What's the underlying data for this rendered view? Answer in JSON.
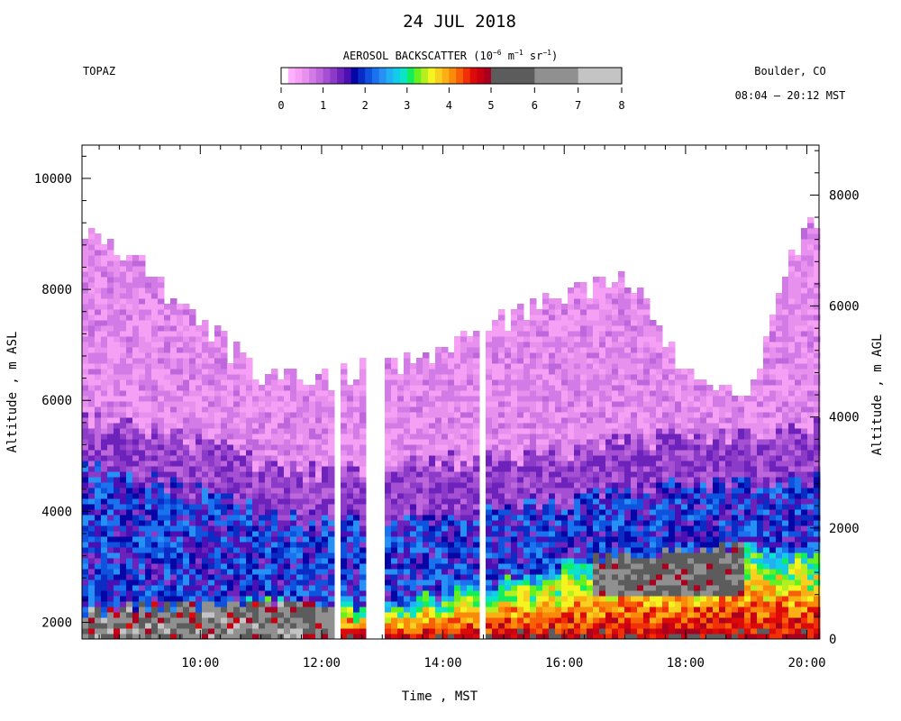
{
  "header": {
    "date_title": "24 JUL 2018",
    "instrument": "TOPAZ",
    "location": "Boulder, CO",
    "time_range": "08:04 – 20:12 MST"
  },
  "colorbar": {
    "label_main": "AEROSOL BACKSCATTER (10",
    "label_exp1": "−6",
    "label_mid1": " m",
    "label_exp2": "−1",
    "label_mid2": " sr",
    "label_exp3": "−1",
    "label_end": ")",
    "ticks": [
      "0",
      "1",
      "2",
      "3",
      "4",
      "5",
      "6",
      "7",
      "8"
    ],
    "colors": [
      "#ffffff",
      "#ffb0ff",
      "#f5a0f5",
      "#e890ee",
      "#d27be6",
      "#be66dc",
      "#a54fd2",
      "#8b3bc8",
      "#6e22bc",
      "#4a10b4",
      "#0606a6",
      "#0a2cc4",
      "#0e52de",
      "#1a72ee",
      "#2690f5",
      "#22b0f5",
      "#12ccea",
      "#0ce4c8",
      "#10ee60",
      "#66f020",
      "#b4f020",
      "#f4f420",
      "#f8d020",
      "#fab014",
      "#fa8a0a",
      "#f86008",
      "#f23008",
      "#dc0a08",
      "#c80012",
      "#a8001e",
      "#5c5c5c",
      "#909090",
      "#c4c4c4"
    ]
  },
  "chart_data": {
    "type": "heatmap",
    "title": "24 JUL 2018",
    "xlabel": "Time , MST",
    "ylabel_left": "Altitude , m ASL",
    "ylabel_right": "Altitude , m AGL",
    "xlim_hours": [
      8.05,
      20.2
    ],
    "ylim_asl": [
      1700,
      10600
    ],
    "ylim_agl": [
      0,
      8900
    ],
    "x_ticks": [
      "10:00",
      "12:00",
      "14:00",
      "16:00",
      "18:00",
      "20:00"
    ],
    "y_left_ticks": [
      "2000",
      "4000",
      "6000",
      "8000",
      "10000"
    ],
    "y_right_ticks": [
      "0",
      "2000",
      "4000",
      "6000",
      "8000"
    ],
    "colorscale_range": [
      0,
      8
    ],
    "grid": false,
    "profiles": [
      {
        "time": "08:10",
        "pbl_top": 2200,
        "residual_top": 4750,
        "cloud_top": 9000
      },
      {
        "time": "09:00",
        "pbl_top": 2250,
        "residual_top": 4600,
        "cloud_top": 8400
      },
      {
        "time": "10:00",
        "pbl_top": 2300,
        "residual_top": 4300,
        "cloud_top": 7400
      },
      {
        "time": "11:00",
        "pbl_top": 2350,
        "residual_top": 4000,
        "cloud_top": 6500
      },
      {
        "time": "12:00",
        "pbl_top": 2400,
        "residual_top": 3800,
        "cloud_top": 6400
      },
      {
        "time": "13:00",
        "pbl_top": 2300,
        "residual_top": 3900,
        "cloud_top": 6600
      },
      {
        "time": "14:00",
        "pbl_top": 2500,
        "residual_top": 4000,
        "cloud_top": 6900
      },
      {
        "time": "15:00",
        "pbl_top": 2750,
        "residual_top": 4100,
        "cloud_top": 7400
      },
      {
        "time": "16:00",
        "pbl_top": 3000,
        "residual_top": 4200,
        "cloud_top": 7800
      },
      {
        "time": "17:00",
        "pbl_top": 3200,
        "residual_top": 4400,
        "cloud_top": 8300
      },
      {
        "time": "18:00",
        "pbl_top": 3300,
        "residual_top": 4500,
        "cloud_top": 6500
      },
      {
        "time": "19:00",
        "pbl_top": 3400,
        "residual_top": 4500,
        "cloud_top": 6000
      },
      {
        "time": "20:00",
        "pbl_top": 3300,
        "residual_top": 4600,
        "cloud_top": 9300
      }
    ]
  }
}
